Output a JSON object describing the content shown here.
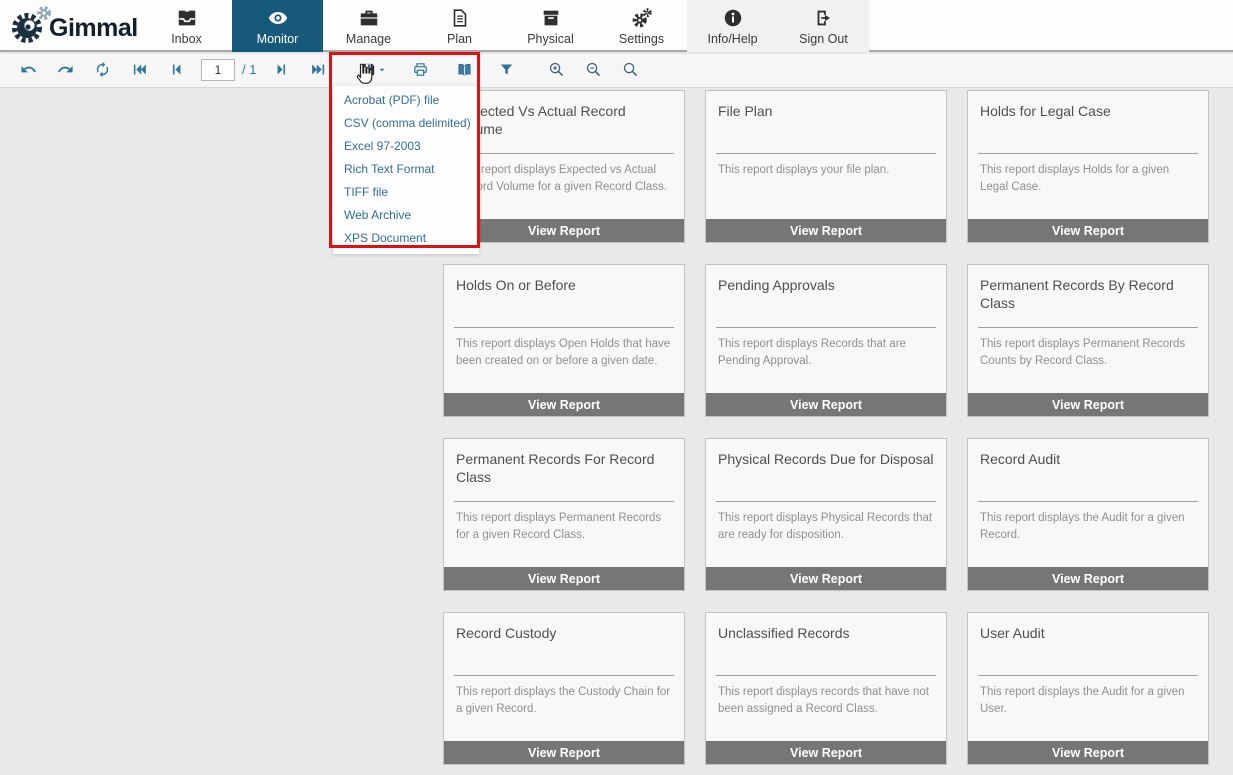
{
  "brand": {
    "logo_text": "Gimmal"
  },
  "nav": {
    "items": [
      {
        "id": "inbox",
        "label": "Inbox",
        "icon": "inbox-icon",
        "active": false,
        "grouped": false
      },
      {
        "id": "monitor",
        "label": "Monitor",
        "icon": "monitor-eye-icon",
        "active": true,
        "grouped": false
      },
      {
        "id": "manage",
        "label": "Manage",
        "icon": "briefcase-icon",
        "active": false,
        "grouped": false
      },
      {
        "id": "plan",
        "label": "Plan",
        "icon": "document-icon",
        "active": false,
        "grouped": false
      },
      {
        "id": "physical",
        "label": "Physical",
        "icon": "archive-box-icon",
        "active": false,
        "grouped": false
      },
      {
        "id": "settings",
        "label": "Settings",
        "icon": "gears-icon",
        "active": false,
        "grouped": false
      },
      {
        "id": "infohelp",
        "label": "Info/Help",
        "icon": "info-icon",
        "active": false,
        "grouped": true
      },
      {
        "id": "signout",
        "label": "Sign Out",
        "icon": "sign-out-icon",
        "active": false,
        "grouped": true
      }
    ]
  },
  "toolbar": {
    "page_input_value": "1",
    "page_total_label": "/ 1"
  },
  "export_menu": {
    "items": [
      "Acrobat (PDF) file",
      "CSV (comma delimited)",
      "Excel 97-2003",
      "Rich Text Format",
      "TIFF file",
      "Web Archive",
      "XPS Document"
    ]
  },
  "ui": {
    "view_report_label": "View Report"
  },
  "reports": [
    {
      "title": "Expected Vs Actual Record Volume",
      "description": "This report displays Expected vs Actual Record Volume for a given Record Class."
    },
    {
      "title": "File Plan",
      "description": "This report displays your file plan."
    },
    {
      "title": "Holds for Legal Case",
      "description": "This report displays Holds for a given Legal Case."
    },
    {
      "title": "Holds On or Before",
      "description": "This report displays Open Holds that have been created on or before a given date."
    },
    {
      "title": "Pending Approvals",
      "description": "This report displays Records that are Pending Approval."
    },
    {
      "title": "Permanent Records By Record Class",
      "description": "This report displays Permanent Records Counts by Record Class."
    },
    {
      "title": "Permanent Records For Record Class",
      "description": "This report displays Permanent Records for a given Record Class."
    },
    {
      "title": "Physical Records Due for Disposal",
      "description": "This report displays Physical Records that are ready for disposition."
    },
    {
      "title": "Record Audit",
      "description": "This report displays the Audit for a given Record."
    },
    {
      "title": "Record Custody",
      "description": "This report displays the Custody Chain for a given Record."
    },
    {
      "title": "Unclassified Records",
      "description": "This report displays records that have not been assigned a Record Class."
    },
    {
      "title": "User Audit",
      "description": "This report displays the Audit for a given User."
    }
  ],
  "colors": {
    "active_tab": "#17597a",
    "toolbar_icon": "#2e7895",
    "menu_text": "#336e99",
    "annotation_red": "#dd1111",
    "view_report_bar": "#767676",
    "page_background": "#e9e9e9"
  }
}
